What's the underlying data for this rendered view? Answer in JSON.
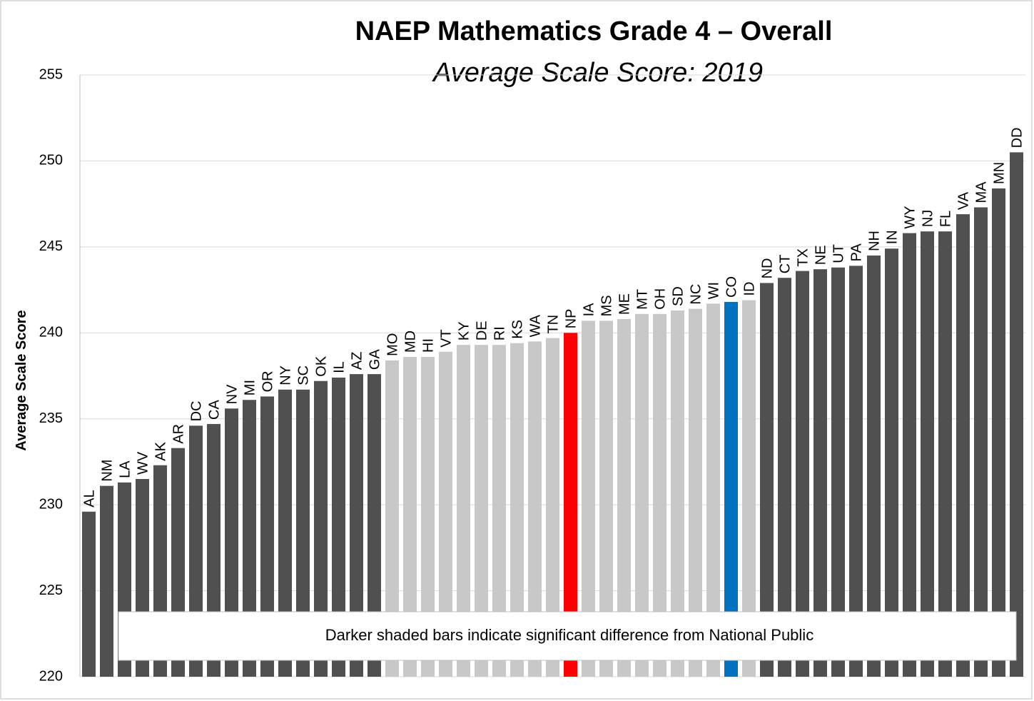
{
  "chart_data": {
    "type": "bar",
    "title": "NAEP Mathematics Grade 4 – Overall",
    "subtitle": "Average Scale Score: 2019",
    "y_label": "Average Scale Score",
    "annotation": "Darker shaded bars indicate significant difference from National Public",
    "categories": [
      "AL",
      "NM",
      "LA",
      "WV",
      "AK",
      "AR",
      "DC",
      "CA",
      "NV",
      "MI",
      "OR",
      "NY",
      "SC",
      "OK",
      "IL",
      "AZ",
      "GA",
      "MO",
      "MD",
      "HI",
      "VT",
      "KY",
      "DE",
      "RI",
      "KS",
      "WA",
      "TN",
      "NP",
      "IA",
      "MS",
      "ME",
      "MT",
      "OH",
      "SD",
      "NC",
      "WI",
      "CO",
      "ID",
      "ND",
      "CT",
      "TX",
      "NE",
      "UT",
      "PA",
      "NH",
      "IN",
      "WY",
      "NJ",
      "FL",
      "VA",
      "MA",
      "MN",
      "DD"
    ],
    "values": [
      229.6,
      231.1,
      231.3,
      231.5,
      232.3,
      233.3,
      234.6,
      234.7,
      235.6,
      236.1,
      236.3,
      236.7,
      236.7,
      237.2,
      237.4,
      237.6,
      237.6,
      238.4,
      238.6,
      238.6,
      238.9,
      239.3,
      239.3,
      239.3,
      239.4,
      239.5,
      239.7,
      240.0,
      240.7,
      240.7,
      240.8,
      241.1,
      241.1,
      241.3,
      241.4,
      241.7,
      241.8,
      241.9,
      242.9,
      243.2,
      243.6,
      243.7,
      243.8,
      243.9,
      244.5,
      244.9,
      245.8,
      245.9,
      245.9,
      246.9,
      247.3,
      248.4,
      250.5
    ],
    "colors": [
      "#505050",
      "#505050",
      "#505050",
      "#505050",
      "#505050",
      "#505050",
      "#505050",
      "#505050",
      "#505050",
      "#505050",
      "#505050",
      "#505050",
      "#505050",
      "#505050",
      "#505050",
      "#505050",
      "#505050",
      "#c8c8c8",
      "#c8c8c8",
      "#c8c8c8",
      "#c8c8c8",
      "#c8c8c8",
      "#c8c8c8",
      "#c8c8c8",
      "#c8c8c8",
      "#c8c8c8",
      "#c8c8c8",
      "#ff0000",
      "#c8c8c8",
      "#c8c8c8",
      "#c8c8c8",
      "#c8c8c8",
      "#c8c8c8",
      "#c8c8c8",
      "#c8c8c8",
      "#c8c8c8",
      "#0070c0",
      "#c8c8c8",
      "#505050",
      "#505050",
      "#505050",
      "#505050",
      "#505050",
      "#505050",
      "#505050",
      "#505050",
      "#505050",
      "#505050",
      "#505050",
      "#505050",
      "#505050",
      "#505050",
      "#505050"
    ],
    "ylim": [
      220,
      255
    ],
    "yticks": [
      220,
      225,
      230,
      235,
      240,
      245,
      250,
      255
    ],
    "grid": true
  }
}
